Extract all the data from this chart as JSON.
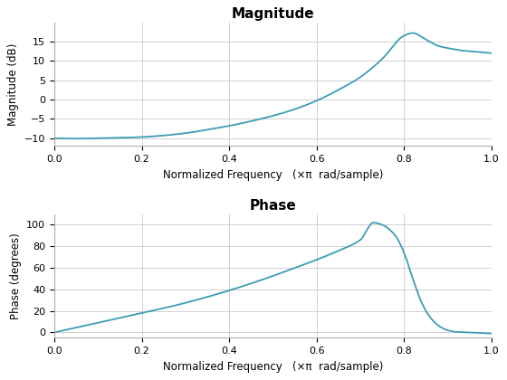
{
  "mag_title": "Magnitude",
  "phase_title": "Phase",
  "xlabel": "Normalized Frequency   (×π  rad/sample)",
  "mag_ylabel": "Magnitude (dB)",
  "phase_ylabel": "Phase (degrees)",
  "line_color": "#3d9db5",
  "line_width": 1.3,
  "mag_ylim": [
    -12,
    20
  ],
  "phase_ylim": [
    -5,
    110
  ],
  "xlim": [
    0,
    1
  ],
  "mag_yticks": [
    -10,
    -5,
    0,
    5,
    10,
    15
  ],
  "phase_yticks": [
    0,
    20,
    40,
    60,
    80,
    100
  ],
  "xticks": [
    0,
    0.2,
    0.4,
    0.6,
    0.8,
    1.0
  ],
  "bg_color": "#ffffff",
  "grid_color": "#d0d0d0",
  "mag_key_x": [
    0.0,
    0.05,
    0.1,
    0.15,
    0.2,
    0.25,
    0.3,
    0.35,
    0.4,
    0.45,
    0.5,
    0.55,
    0.6,
    0.65,
    0.7,
    0.75,
    0.8,
    0.82,
    0.85,
    0.88,
    0.9,
    0.93,
    0.95,
    1.0
  ],
  "mag_key_y": [
    -10.0,
    -10.1,
    -10.0,
    -9.9,
    -9.7,
    -9.3,
    -8.7,
    -7.8,
    -6.8,
    -5.6,
    -4.2,
    -2.5,
    -0.3,
    2.5,
    5.8,
    10.5,
    16.5,
    17.2,
    15.5,
    13.8,
    13.3,
    12.7,
    12.5,
    12.0
  ],
  "phase_key_x": [
    0.0,
    0.05,
    0.1,
    0.15,
    0.2,
    0.25,
    0.3,
    0.35,
    0.4,
    0.45,
    0.5,
    0.55,
    0.6,
    0.65,
    0.7,
    0.73,
    0.75,
    0.78,
    0.8,
    0.82,
    0.84,
    0.86,
    0.88,
    0.9,
    0.92,
    0.95,
    1.0
  ],
  "phase_key_y": [
    0.0,
    4.5,
    9.0,
    13.5,
    18.0,
    22.5,
    27.5,
    33.0,
    39.0,
    45.5,
    52.5,
    60.0,
    67.5,
    76.0,
    86.0,
    102.0,
    100.0,
    90.0,
    74.0,
    50.0,
    28.0,
    14.0,
    6.0,
    2.0,
    0.5,
    0.0,
    -1.0
  ]
}
